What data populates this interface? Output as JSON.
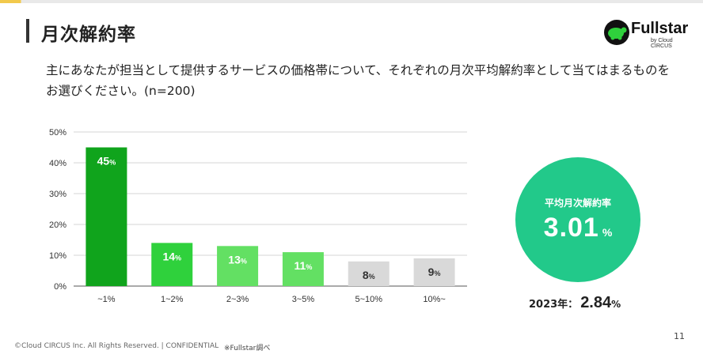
{
  "header": {
    "title": "月次解約率",
    "logo_text": "Fullstar",
    "logo_sub": "by Cloud CIRCUS"
  },
  "question": "主にあなたが担当として提供するサービスの価格帯について、それぞれの月次平均解約率として当てはまるものをお選びください。(n=200)",
  "summary": {
    "label": "平均月次解約率",
    "value": "3.01",
    "unit": "%",
    "circle_color": "#22c98a",
    "prev_label": "2023年：",
    "prev_value": "2.84",
    "prev_unit": "%"
  },
  "footer": {
    "copyright": "©Cloud CIRCUS Inc. All Rights Reserved. | CONFIDENTIAL",
    "source": "※Fullstar調べ",
    "page": "11"
  },
  "chart_data": {
    "type": "bar",
    "categories": [
      "~1%",
      "1~2%",
      "2~3%",
      "3~5%",
      "5~10%",
      "10%~"
    ],
    "values": [
      45,
      14,
      13,
      11,
      8,
      9
    ],
    "ylim": [
      0,
      50
    ],
    "yticks": [
      "0%",
      "10%",
      "20%",
      "30%",
      "40%",
      "50%"
    ],
    "grid": true,
    "value_unit": "%",
    "bar_colors": [
      "#10a41c",
      "#2fd13c",
      "#63e063",
      "#63e063",
      "#d9d9d9",
      "#d9d9d9"
    ],
    "label_colors": [
      "#ffffff",
      "#ffffff",
      "#ffffff",
      "#ffffff",
      "#333333",
      "#333333"
    ]
  }
}
